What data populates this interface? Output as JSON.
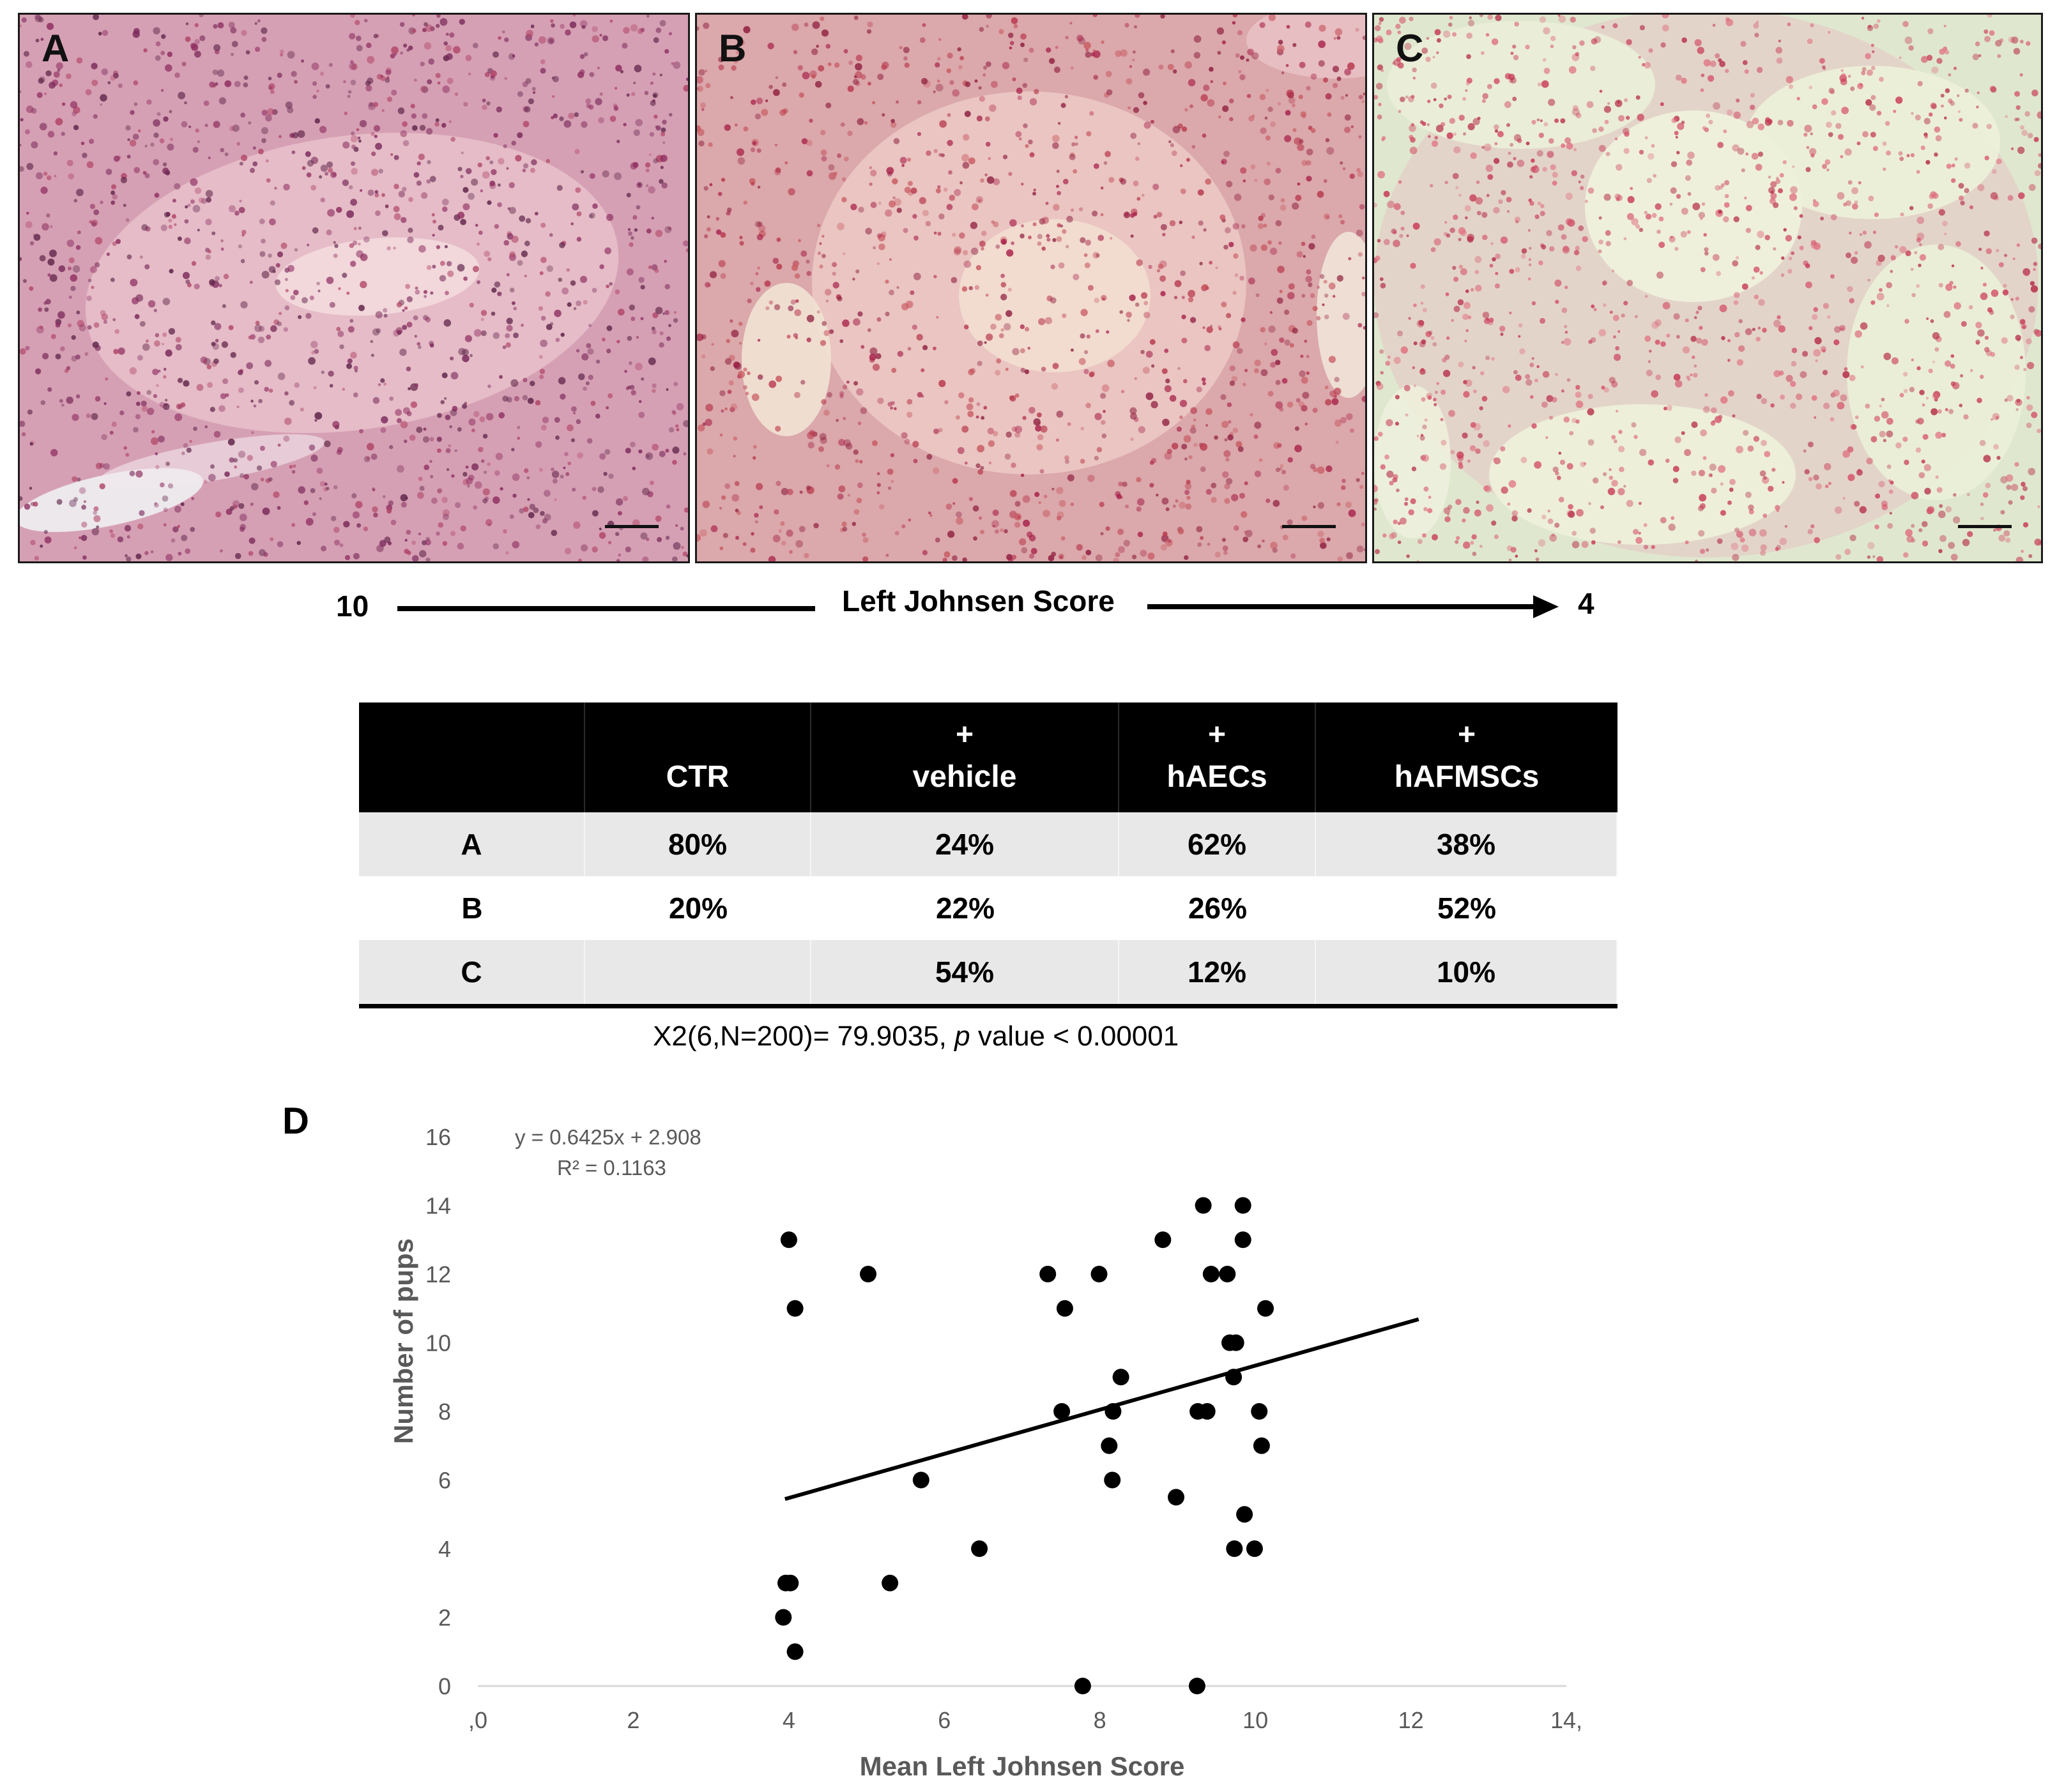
{
  "panels": [
    {
      "letter": "A",
      "bg": "#d9a3b3"
    },
    {
      "letter": "B",
      "bg": "#dcaaa8"
    },
    {
      "letter": "C",
      "bg": "#dfe8cf"
    }
  ],
  "johnsen_axis": {
    "left_value": "10",
    "title": "Left Johnsen Score",
    "right_value": "4"
  },
  "table": {
    "headers": [
      {
        "top": "",
        "bottom": ""
      },
      {
        "top": "",
        "bottom": "CTR"
      },
      {
        "top": "+",
        "bottom": "vehicle"
      },
      {
        "top": "+",
        "bottom": "hAECs"
      },
      {
        "top": "+",
        "bottom": "hAFMSCs"
      }
    ],
    "rows": [
      {
        "label": "A",
        "values": [
          "80%",
          "24%",
          "62%",
          "38%"
        ]
      },
      {
        "label": "B",
        "values": [
          "20%",
          "22%",
          "26%",
          "52%"
        ]
      },
      {
        "label": "C",
        "values": [
          "",
          "54%",
          "12%",
          "10%"
        ]
      }
    ],
    "stat_prefix": "X2(6,N=200)= 79.9035, ",
    "stat_p": "p",
    "stat_suffix": " value < 0.00001"
  },
  "panel_d_label": "D",
  "chart_data": {
    "type": "scatter",
    "xlabel": "Mean Left Johnsen Score",
    "ylabel": "Number of pups",
    "xlim": [
      0,
      14
    ],
    "ylim": [
      0,
      16
    ],
    "x_ticks": [
      ",0",
      "2",
      "4",
      "6",
      "8",
      "10",
      "12",
      "14,"
    ],
    "y_ticks": [
      "0",
      "2",
      "4",
      "6",
      "8",
      "10",
      "12",
      "14",
      "16"
    ],
    "trendline": {
      "equation": "y = 0.6425x + 2.908",
      "r2": "R² = 0.1163",
      "slope": 0.6425,
      "intercept": 2.908,
      "x_range": [
        3.95,
        12.1
      ]
    },
    "points": [
      {
        "x": 4.0,
        "y": 13
      },
      {
        "x": 4.08,
        "y": 11
      },
      {
        "x": 5.02,
        "y": 12
      },
      {
        "x": 7.33,
        "y": 12
      },
      {
        "x": 7.55,
        "y": 11
      },
      {
        "x": 7.99,
        "y": 12
      },
      {
        "x": 8.81,
        "y": 13
      },
      {
        "x": 9.33,
        "y": 14
      },
      {
        "x": 9.84,
        "y": 14
      },
      {
        "x": 9.84,
        "y": 13
      },
      {
        "x": 9.43,
        "y": 12
      },
      {
        "x": 9.64,
        "y": 12
      },
      {
        "x": 10.13,
        "y": 11
      },
      {
        "x": 9.67,
        "y": 10
      },
      {
        "x": 9.75,
        "y": 10
      },
      {
        "x": 8.27,
        "y": 9
      },
      {
        "x": 9.72,
        "y": 9
      },
      {
        "x": 7.51,
        "y": 8
      },
      {
        "x": 8.17,
        "y": 8
      },
      {
        "x": 9.26,
        "y": 8
      },
      {
        "x": 9.38,
        "y": 8
      },
      {
        "x": 10.05,
        "y": 8
      },
      {
        "x": 8.12,
        "y": 7
      },
      {
        "x": 10.08,
        "y": 7
      },
      {
        "x": 5.7,
        "y": 6
      },
      {
        "x": 8.16,
        "y": 6
      },
      {
        "x": 8.98,
        "y": 5.5
      },
      {
        "x": 9.86,
        "y": 5
      },
      {
        "x": 6.45,
        "y": 4
      },
      {
        "x": 9.73,
        "y": 4
      },
      {
        "x": 9.99,
        "y": 4
      },
      {
        "x": 3.96,
        "y": 3
      },
      {
        "x": 4.02,
        "y": 3
      },
      {
        "x": 5.3,
        "y": 3
      },
      {
        "x": 3.93,
        "y": 2
      },
      {
        "x": 4.08,
        "y": 1
      },
      {
        "x": 7.78,
        "y": 0
      },
      {
        "x": 9.25,
        "y": 0
      }
    ]
  },
  "colors": {
    "point": "#000000",
    "axis_text": "#595959",
    "axis_line": "#d9d9d9"
  }
}
